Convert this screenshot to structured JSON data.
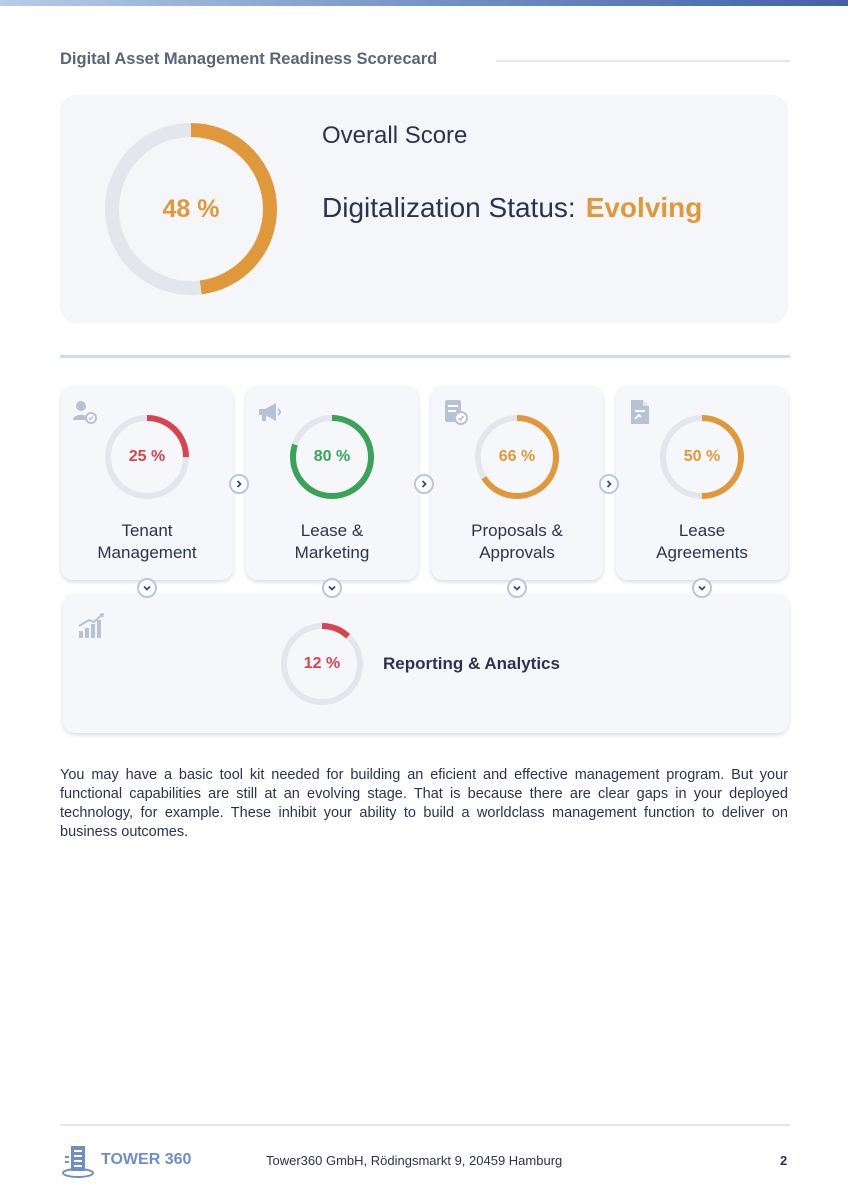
{
  "header": {
    "title": "Digital Asset Management Readiness Scorecard",
    "accent_color": "#6f8ec6"
  },
  "overall": {
    "score_value": 48,
    "score_label": "48 %",
    "heading": "Overall Score",
    "status_label": "Digitalization Status:",
    "status_value": "Evolving",
    "color": "#e0993a"
  },
  "categories": [
    {
      "name": "Tenant Management",
      "line1": "Tenant",
      "line2": "Management",
      "percent": 25,
      "percent_label": "25 %",
      "color": "#d9434e",
      "icon": "users-icon"
    },
    {
      "name": "Lease & Marketing",
      "line1": "Lease &",
      "line2": "Marketing",
      "percent": 80,
      "percent_label": "80 %",
      "color": "#3aa357",
      "icon": "megaphone-icon"
    },
    {
      "name": "Proposals & Approvals",
      "line1": "Proposals &",
      "line2": "Approvals",
      "percent": 66,
      "percent_label": "66 %",
      "color": "#e0993a",
      "icon": "approval-document-icon"
    },
    {
      "name": "Lease Agreements",
      "line1": "Lease",
      "line2": "Agreements",
      "percent": 50,
      "percent_label": "50 %",
      "color": "#e0993a",
      "icon": "contract-document-icon"
    }
  ],
  "reporting": {
    "name": "Reporting & Analytics",
    "percent": 12,
    "percent_label": "12 %",
    "color": "#d9434e",
    "icon": "bar-chart-growth-icon"
  },
  "summary_text": "You may have a basic tool kit needed for building an eficient and effective management program. But your functional capabilities are still at an evolving stage. That is because there are clear gaps in your deployed technology, for example. These inhibit your ability to build a worldclass management function to deliver on business outcomes.",
  "footer": {
    "brand": "TOWER 360",
    "address": "Tower360 GmbH, Rödingsmarkt 9, 20459 Hamburg",
    "page_number": "2"
  },
  "colors": {
    "track": "#e3e6ec",
    "text": "#2b3350",
    "icon": "#b8c2d6"
  }
}
